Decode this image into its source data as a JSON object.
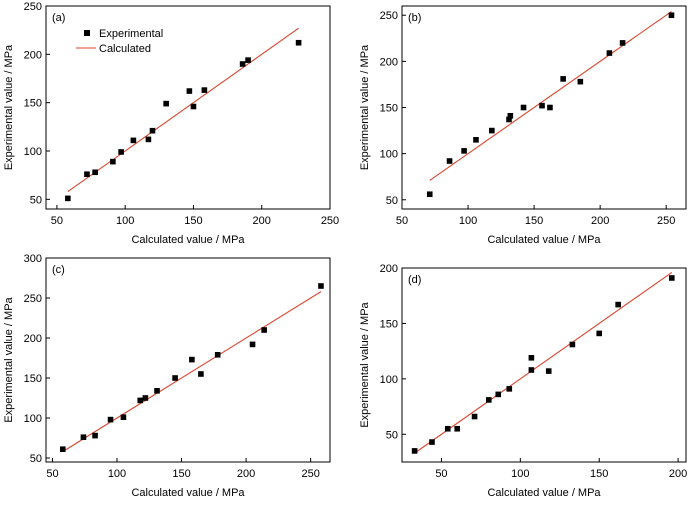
{
  "chart_data": [
    {
      "type": "scatter",
      "panel_label": "(a)",
      "xlabel": "Calculated value / MPa",
      "ylabel": "Experimental value / MPa",
      "xlim": [
        42,
        250
      ],
      "ylim": [
        40,
        250
      ],
      "xticks": [
        50,
        100,
        150,
        200,
        250
      ],
      "yticks": [
        50,
        100,
        150,
        200,
        250
      ],
      "grid": false,
      "legend_position": "top-left",
      "colors": {
        "points": "#000000",
        "line": "#d9462e"
      },
      "series": [
        {
          "name": "Experimental",
          "kind": "points",
          "x": [
            58,
            72,
            78,
            91,
            97,
            106,
            117,
            120,
            130,
            147,
            150,
            158,
            186,
            190,
            227
          ],
          "y": [
            51,
            76,
            78,
            89,
            99,
            111,
            112,
            121,
            149,
            162,
            146,
            163,
            190,
            194,
            212
          ]
        },
        {
          "name": "Calculated",
          "kind": "line",
          "x": [
            58,
            227
          ],
          "y": [
            58,
            227
          ]
        }
      ]
    },
    {
      "type": "scatter",
      "panel_label": "(b)",
      "xlabel": "Calculated value / MPa",
      "ylabel": "Experimental value / MPa",
      "xlim": [
        50,
        265
      ],
      "ylim": [
        40,
        260
      ],
      "xticks": [
        50,
        100,
        150,
        200,
        250
      ],
      "yticks": [
        50,
        100,
        150,
        200,
        250
      ],
      "grid": false,
      "colors": {
        "points": "#000000",
        "line": "#d9462e"
      },
      "series": [
        {
          "name": "Experimental",
          "kind": "points",
          "x": [
            71,
            86,
            97,
            106,
            118,
            131,
            132,
            142,
            156,
            162,
            172,
            185,
            207,
            217,
            254
          ],
          "y": [
            56,
            92,
            103,
            115,
            125,
            137,
            141,
            150,
            152,
            150,
            181,
            178,
            209,
            220,
            250
          ]
        },
        {
          "name": "Calculated",
          "kind": "line",
          "x": [
            71,
            254
          ],
          "y": [
            71,
            254
          ]
        }
      ]
    },
    {
      "type": "scatter",
      "panel_label": "(c)",
      "xlabel": "Calculated value / MPa",
      "ylabel": "Experimental value / MPa",
      "xlim": [
        45,
        265
      ],
      "ylim": [
        45,
        300
      ],
      "xticks": [
        50,
        100,
        150,
        200,
        250
      ],
      "yticks": [
        50,
        100,
        150,
        200,
        250,
        300
      ],
      "grid": false,
      "colors": {
        "points": "#000000",
        "line": "#d9462e"
      },
      "series": [
        {
          "name": "Experimental",
          "kind": "points",
          "x": [
            58,
            74,
            83,
            95,
            105,
            118,
            122,
            131,
            145,
            158,
            165,
            178,
            205,
            214,
            258
          ],
          "y": [
            61,
            76,
            78,
            98,
            101,
            122,
            125,
            134,
            150,
            173,
            155,
            179,
            192,
            210,
            265
          ]
        },
        {
          "name": "Calculated",
          "kind": "line",
          "x": [
            58,
            258
          ],
          "y": [
            58,
            258
          ]
        }
      ]
    },
    {
      "type": "scatter",
      "panel_label": "(d)",
      "xlabel": "Calculated value / MPa",
      "ylabel": "Experimental value / MPa",
      "xlim": [
        25,
        205
      ],
      "ylim": [
        25,
        200
      ],
      "xticks": [
        50,
        100,
        150,
        200
      ],
      "yticks": [
        50,
        100,
        150,
        200
      ],
      "grid": false,
      "colors": {
        "points": "#000000",
        "line": "#d9462e"
      },
      "series": [
        {
          "name": "Experimental",
          "kind": "points",
          "x": [
            33,
            44,
            54,
            60,
            71,
            80,
            86,
            93,
            107,
            107,
            118,
            133,
            150,
            162,
            196
          ],
          "y": [
            35,
            43,
            55,
            55,
            66,
            81,
            86,
            91,
            108,
            119,
            107,
            131,
            141,
            167,
            191
          ]
        },
        {
          "name": "Calculated",
          "kind": "line",
          "x": [
            33,
            196
          ],
          "y": [
            33,
            196
          ]
        }
      ]
    }
  ]
}
